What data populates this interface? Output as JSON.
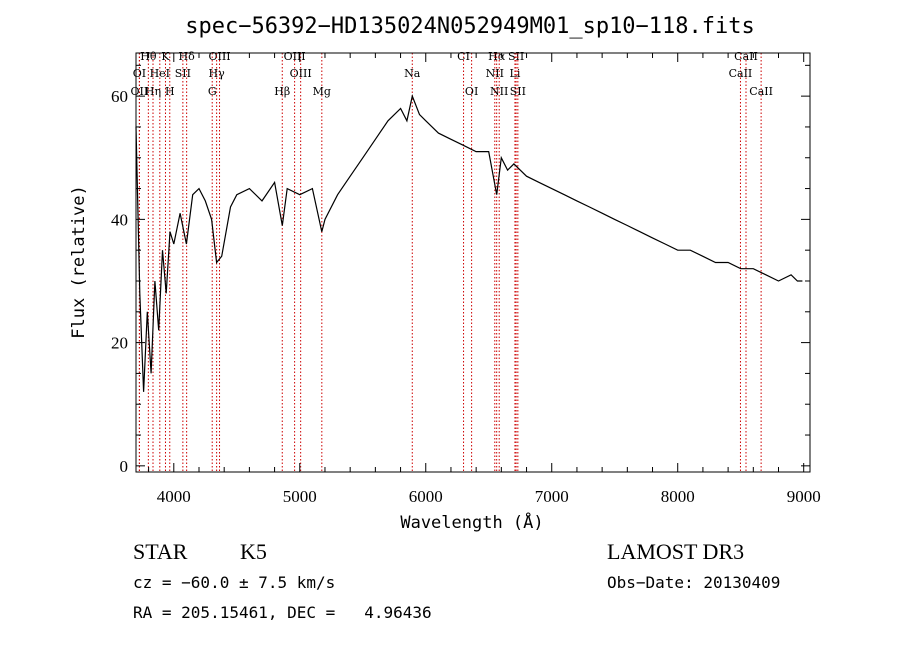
{
  "chart_data": {
    "type": "line",
    "title": "spec−56392−HD135024N052949M01_sp10−118.fits",
    "xlabel": "Wavelength (Å)",
    "ylabel": "Flux (relative)",
    "xlim": [
      3700,
      9050
    ],
    "ylim": [
      -1,
      67
    ],
    "xticks": [
      4000,
      5000,
      6000,
      7000,
      8000,
      9000
    ],
    "xtick_labels": [
      "4000",
      "5000",
      "6000",
      "7000",
      "8000",
      "9000"
    ],
    "yticks": [
      0,
      20,
      40,
      60
    ],
    "ytick_labels": [
      "0",
      "20",
      "40",
      "60"
    ],
    "grid": false,
    "legend": "none",
    "line_color": "#000000",
    "marker_line_color": "#cc0000",
    "series": [
      {
        "x": [
          3700,
          3730,
          3760,
          3790,
          3820,
          3850,
          3880,
          3910,
          3940,
          3970,
          4000,
          4050,
          4100,
          4150,
          4200,
          4250,
          4300,
          4340,
          4380,
          4450,
          4500,
          4600,
          4700,
          4800,
          4861,
          4900,
          5000,
          5100,
          5175,
          5200,
          5300,
          5400,
          5500,
          5600,
          5700,
          5800,
          5850,
          5893,
          5950,
          6000,
          6100,
          6200,
          6300,
          6400,
          6500,
          6563,
          6600,
          6650,
          6700,
          6750,
          6800,
          6900,
          7000,
          7100,
          7200,
          7300,
          7400,
          7500,
          7600,
          7700,
          7800,
          7900,
          8000,
          8100,
          8200,
          8300,
          8400,
          8500,
          8600,
          8700,
          8800,
          8900,
          8950,
          8990
        ],
        "y": [
          55,
          28,
          12,
          25,
          15,
          30,
          22,
          35,
          28,
          38,
          36,
          41,
          36,
          44,
          45,
          43,
          40,
          33,
          34,
          42,
          44,
          45,
          43,
          46,
          39,
          45,
          44,
          45,
          38,
          40,
          44,
          47,
          50,
          53,
          56,
          58,
          56,
          60,
          57,
          56,
          54,
          53,
          52,
          51,
          51,
          44,
          50,
          48,
          49,
          48,
          47,
          46,
          45,
          44,
          43,
          42,
          41,
          40,
          39,
          38,
          37,
          36,
          35,
          35,
          34,
          33,
          33,
          32,
          32,
          31,
          30,
          31,
          30,
          30
        ]
      }
    ],
    "annotations": [
      {
        "label": "Hθ",
        "x": 3798,
        "row": 0
      },
      {
        "label": "K",
        "x": 3934,
        "row": 0
      },
      {
        "label": "Hδ",
        "x": 4102,
        "row": 0
      },
      {
        "label": "OIII",
        "x": 4363,
        "row": 0
      },
      {
        "label": "OIII",
        "x": 4959,
        "row": 0
      },
      {
        "label": "CI",
        "x": 6300,
        "row": 0
      },
      {
        "label": "Hα",
        "x": 6563,
        "row": 0
      },
      {
        "label": "SII",
        "x": 6717,
        "row": 0
      },
      {
        "label": "CaII",
        "x": 8542,
        "row": 0
      },
      {
        "label": "OI",
        "x": 3727,
        "row": 1
      },
      {
        "label": "HeI",
        "x": 3889,
        "row": 1
      },
      {
        "label": "SII",
        "x": 4072,
        "row": 1
      },
      {
        "label": "Hγ",
        "x": 4340,
        "row": 1
      },
      {
        "label": "OIII",
        "x": 5007,
        "row": 1
      },
      {
        "label": "Na",
        "x": 5893,
        "row": 1
      },
      {
        "label": "NII",
        "x": 6548,
        "row": 1
      },
      {
        "label": "Li",
        "x": 6708,
        "row": 1
      },
      {
        "label": "CaII",
        "x": 8498,
        "row": 1
      },
      {
        "label": "OII",
        "x": 3727,
        "row": 2
      },
      {
        "label": "Hη",
        "x": 3835,
        "row": 2
      },
      {
        "label": "H",
        "x": 3968,
        "row": 2
      },
      {
        "label": "G",
        "x": 4305,
        "row": 2
      },
      {
        "label": "Hβ",
        "x": 4861,
        "row": 2
      },
      {
        "label": "Mg",
        "x": 5175,
        "row": 2
      },
      {
        "label": "OI",
        "x": 6364,
        "row": 2
      },
      {
        "label": "NII",
        "x": 6583,
        "row": 2
      },
      {
        "label": "SII",
        "x": 6731,
        "row": 2
      },
      {
        "label": "CaII",
        "x": 8662,
        "row": 2
      }
    ]
  },
  "info": {
    "object_class": "STAR",
    "subclass": "K5",
    "survey": "LAMOST DR3",
    "redshift_line": "cz = −60.0 ± 7.5 km/s",
    "obs_date": "Obs−Date: 20130409",
    "coords": "RA = 205.15461, DEC =   4.96436"
  }
}
